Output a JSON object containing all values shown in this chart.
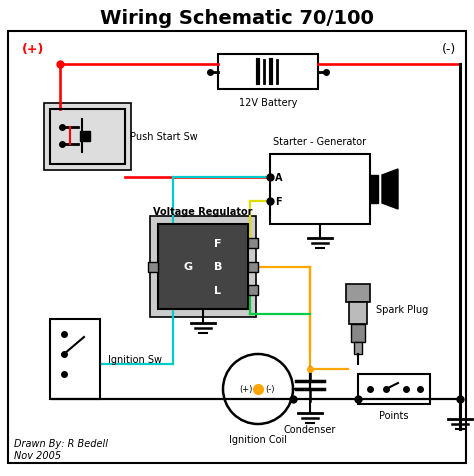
{
  "title": "Wiring Schematic 70/100",
  "title_fontsize": 14,
  "title_fontweight": "bold",
  "bg_color": "#ffffff",
  "footer": "Drawn By: R Bedell\nNov 2005",
  "plus_label": "(+)",
  "minus_label": "(-)",
  "wire_lw": 1.6,
  "colors": {
    "red": "#ff0000",
    "black": "#000000",
    "cyan": "#00CCCC",
    "yellow": "#DDDD00",
    "orange": "#FFA500",
    "green": "#00CC44"
  },
  "components": {
    "battery_label": "12V Battery",
    "push_start_label": "Push Start Sw",
    "starter_gen_label": "Starter - Generator",
    "voltage_reg_label": "Voltage Regulator",
    "spark_plug_label": "Spark Plug",
    "ignition_sw_label": "Ignition Sw",
    "ignition_coil_label": "Ignition Coil",
    "condenser_label": "Condenser",
    "points_label": "Points"
  }
}
